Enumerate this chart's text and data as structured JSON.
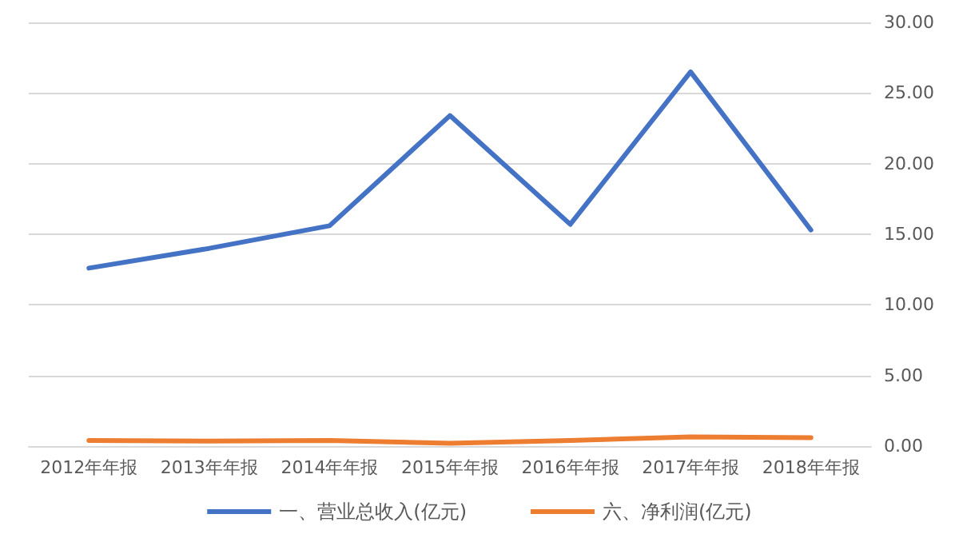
{
  "chart_data": {
    "type": "line",
    "categories": [
      "2012年年报",
      "2013年年报",
      "2014年年报",
      "2015年年报",
      "2016年年报",
      "2017年年报",
      "2018年年报"
    ],
    "series": [
      {
        "name": "一、营业总收入(亿元)",
        "color": "#4472c4",
        "values": [
          12.6,
          14.0,
          15.6,
          23.4,
          15.7,
          26.5,
          15.3
        ]
      },
      {
        "name": "六、净利润(亿元)",
        "color": "#ed7d31",
        "values": [
          0.4,
          0.35,
          0.4,
          0.2,
          0.4,
          0.65,
          0.6
        ]
      }
    ],
    "ylim": [
      0,
      30
    ],
    "yticks": [
      {
        "value": 0,
        "label": "0.00"
      },
      {
        "value": 5,
        "label": "5.00"
      },
      {
        "value": 10,
        "label": "10.00"
      },
      {
        "value": 15,
        "label": "15.00"
      },
      {
        "value": 20,
        "label": "20.00"
      },
      {
        "value": 25,
        "label": "25.00"
      },
      {
        "value": 30,
        "label": "30.00"
      }
    ],
    "grid": "y",
    "legend": "bottom",
    "marker": "none",
    "line_style": "solid"
  }
}
